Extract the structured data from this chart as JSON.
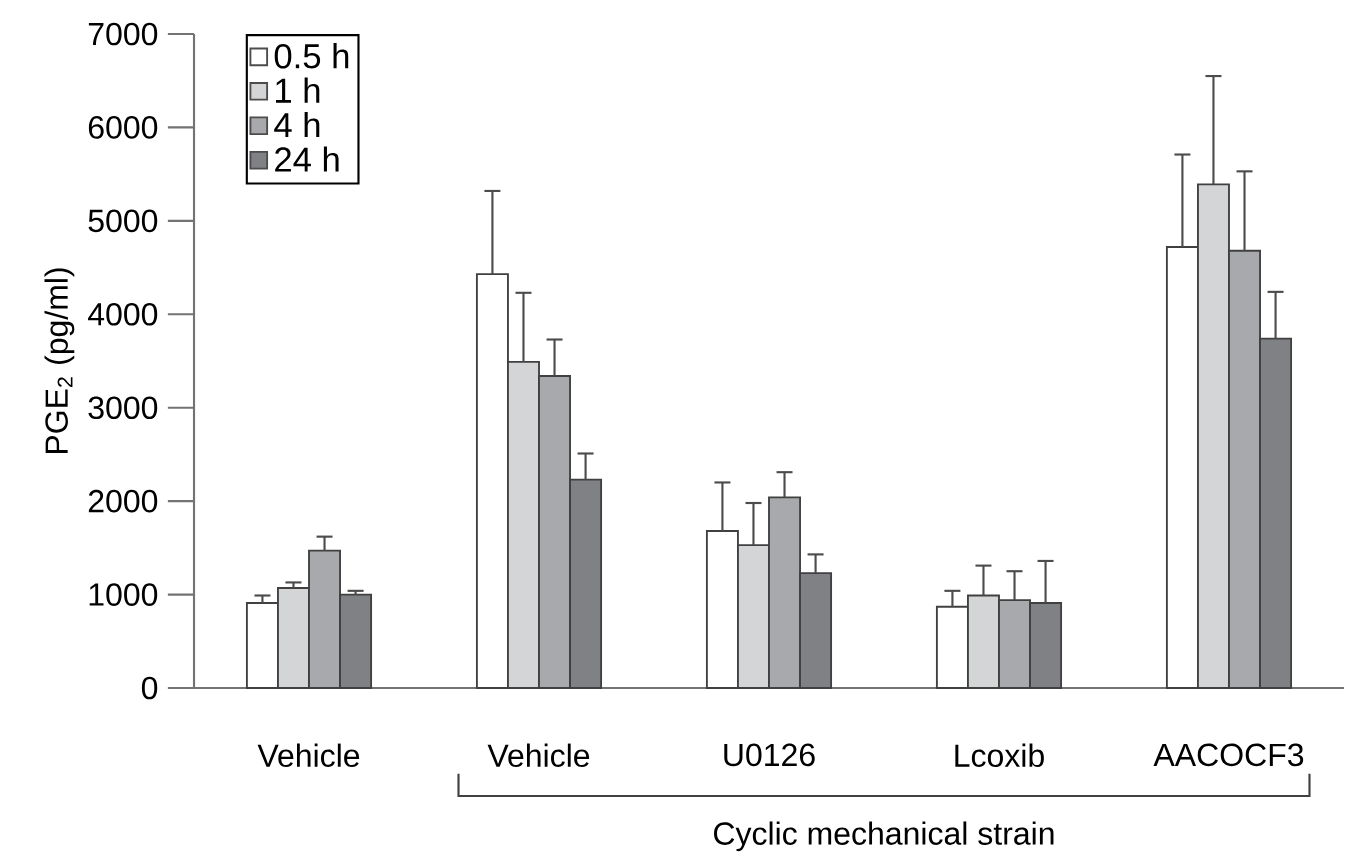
{
  "chart_data": {
    "type": "bar",
    "ylabel": "PGE$_{2}$ (pg/ml)",
    "categories": [
      "Vehicle",
      "Vehicle",
      "U0126",
      "Lcoxib",
      "AACOCF3"
    ],
    "series": [
      {
        "name": "0.5 h",
        "color": "#ffffff",
        "values": [
          910,
          4430,
          1680,
          870,
          4720
        ],
        "errors": [
          [
            910,
            990
          ],
          [
            4430,
            5320
          ],
          [
            1680,
            2200
          ],
          [
            870,
            1040
          ],
          [
            4720,
            5710
          ]
        ]
      },
      {
        "name": "1 h",
        "color": "#d4d5d7",
        "values": [
          1070,
          3490,
          1530,
          990,
          5390
        ],
        "errors": [
          [
            1070,
            1130
          ],
          [
            3490,
            4230
          ],
          [
            1530,
            1980
          ],
          [
            990,
            1310
          ],
          [
            5390,
            6550
          ]
        ]
      },
      {
        "name": "4 h",
        "color": "#a8a9ac",
        "values": [
          1470,
          3340,
          2040,
          940,
          4680
        ],
        "errors": [
          [
            1470,
            1620
          ],
          [
            3340,
            3730
          ],
          [
            2040,
            2310
          ],
          [
            940,
            1250
          ],
          [
            4680,
            5530
          ]
        ]
      },
      {
        "name": "24 h",
        "color": "#808184",
        "values": [
          1000,
          2230,
          1230,
          910,
          3740
        ],
        "errors": [
          [
            1000,
            1040
          ],
          [
            2230,
            2510
          ],
          [
            1230,
            1430
          ],
          [
            910,
            1360
          ],
          [
            3740,
            4240
          ]
        ]
      }
    ],
    "ylim": [
      0,
      7000
    ],
    "yticks": [
      0,
      1000,
      2000,
      3000,
      4000,
      5000,
      6000,
      7000
    ],
    "grid": false,
    "legend": "top left",
    "annotations": [
      "Cyclic mechanical strain"
    ]
  }
}
